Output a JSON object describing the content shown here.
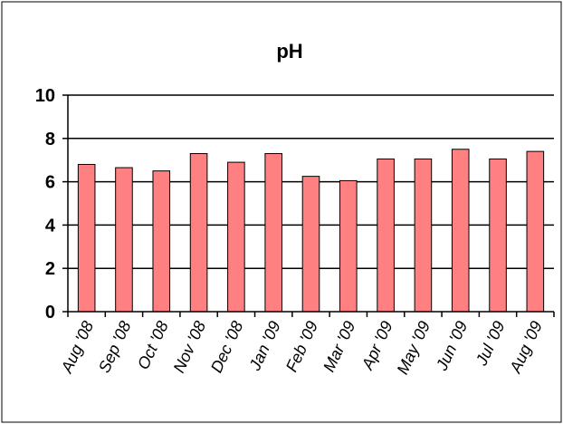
{
  "chart_data": {
    "type": "bar",
    "title": "pH",
    "xlabel": "",
    "ylabel": "",
    "ylim": [
      0,
      10
    ],
    "yticks": [
      "0",
      "2",
      "4",
      "6",
      "8",
      "10"
    ],
    "grid": true,
    "legend": "none",
    "categories": [
      "Aug '08",
      "Sep '08",
      "Oct '08",
      "Nov '08",
      "Dec '08",
      "Jan '09",
      "Feb '09",
      "Mar '09",
      "Apr '09",
      "May '09",
      "Jun '09",
      "Jul '09",
      "Aug '09"
    ],
    "values": [
      6.8,
      6.65,
      6.5,
      7.3,
      6.9,
      7.3,
      6.25,
      6.05,
      7.05,
      7.05,
      7.5,
      7.05,
      7.4
    ],
    "colors": {
      "bar_fill": "#ff8080",
      "bar_stroke": "#000000",
      "grid": "#000000",
      "background": "#ffffff",
      "border": "#000000"
    }
  }
}
